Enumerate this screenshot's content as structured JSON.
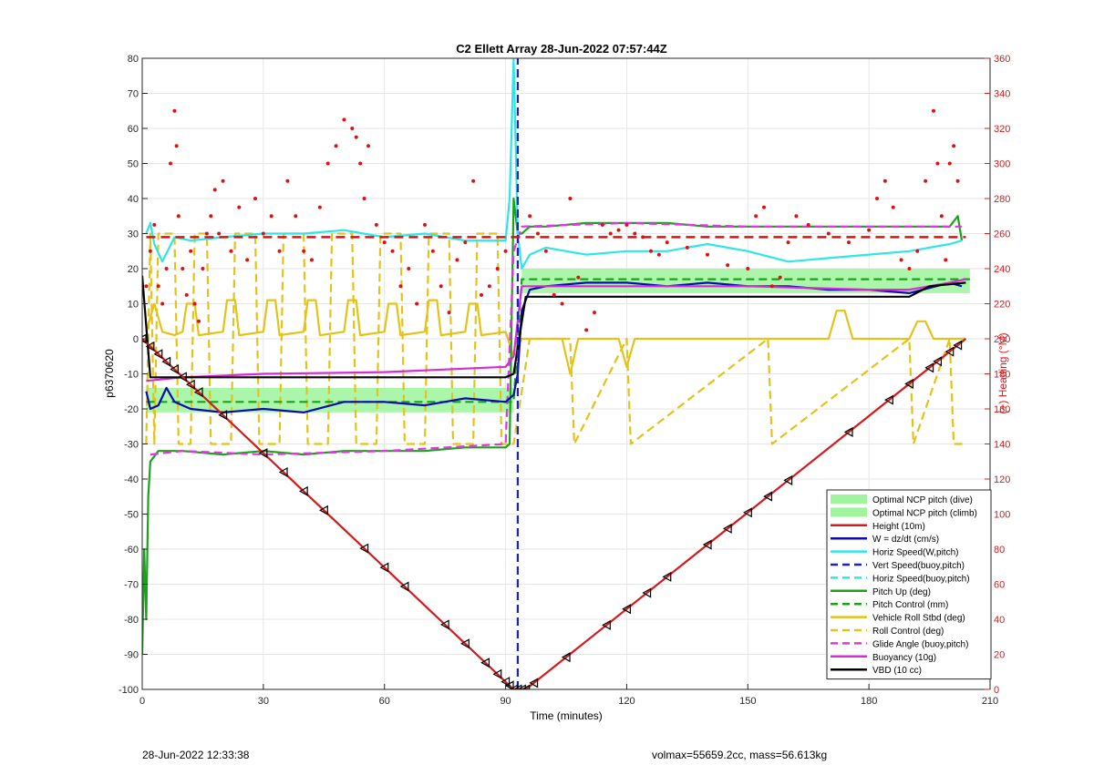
{
  "footer": {
    "left": "28-Jun-2022 12:33:38",
    "right": "volmax=55659.2cc, mass=56.613kg"
  },
  "chart_data": {
    "type": "line",
    "title": "C2 Ellett Array 28-Jun-2022 07:57:44Z",
    "xlabel": "Time (minutes)",
    "ylabel": "p6370620",
    "ylabel_right": "(+) Heading (°M)",
    "xlim": [
      0,
      210
    ],
    "ylim": [
      -100,
      80
    ],
    "ylim_right": [
      0,
      360
    ],
    "xticks": [
      0,
      30,
      60,
      90,
      120,
      150,
      180,
      210
    ],
    "yticks": [
      -100,
      -90,
      -80,
      -70,
      -60,
      -50,
      -40,
      -30,
      -20,
      -10,
      0,
      10,
      20,
      30,
      40,
      50,
      60,
      70,
      80
    ],
    "yticks_right": [
      0,
      20,
      40,
      60,
      80,
      100,
      120,
      140,
      160,
      180,
      200,
      220,
      240,
      260,
      280,
      300,
      320,
      340,
      360
    ],
    "grid": true,
    "legend_position": "bottom-right",
    "colors": {
      "height": "#d7191c",
      "w": "#0b0bb0",
      "horiz": "#2ee6e6",
      "vert_dash": "#1f1fcc",
      "pitch": "#1aa31a",
      "roll": "#e3c21a",
      "glide": "#e633e6",
      "buoyancy": "#d92ad9",
      "vbd": "#000000",
      "band": "#9ef59e",
      "heading": "#e01010"
    },
    "bands": [
      {
        "name": "Optimal NCP pitch (dive)",
        "x": [
          1,
          92
        ],
        "y": [
          -21,
          -14
        ]
      },
      {
        "name": "Optimal NCP pitch (climb)",
        "x": [
          94,
          205
        ],
        "y": [
          13,
          20
        ]
      }
    ],
    "series": [
      {
        "name": "Height (10m)",
        "style": "solid",
        "x": [
          0,
          92,
          95,
          204
        ],
        "y": [
          0,
          -100,
          -100,
          0
        ]
      },
      {
        "name": "W = dz/dt (cm/s)",
        "style": "solid",
        "x": [
          1,
          2,
          4,
          6,
          8,
          12,
          20,
          30,
          40,
          50,
          60,
          70,
          80,
          90,
          92,
          93,
          94,
          96,
          100,
          110,
          120,
          130,
          140,
          150,
          160,
          170,
          180,
          190,
          200,
          203
        ],
        "y": [
          -15,
          -20,
          -19,
          -14,
          -18,
          -20,
          -21,
          -20,
          -21,
          -18,
          -18,
          -19,
          -17,
          -18,
          -16,
          -10,
          8,
          14,
          15,
          16,
          16,
          15,
          16,
          15,
          15,
          14,
          14,
          13,
          16,
          15
        ]
      },
      {
        "name": "Horiz Speed(W,pitch)",
        "style": "solid",
        "x": [
          1,
          2,
          3,
          5,
          8,
          12,
          20,
          30,
          40,
          50,
          60,
          70,
          80,
          90,
          91,
          92,
          93,
          94,
          96,
          100,
          110,
          120,
          130,
          140,
          150,
          160,
          170,
          180,
          190,
          200,
          203
        ],
        "y": [
          30,
          33,
          27,
          22,
          29,
          28,
          29,
          30,
          30,
          31,
          29,
          30,
          28,
          28,
          40,
          80,
          30,
          20,
          24,
          26,
          24,
          25,
          25,
          27,
          25,
          22,
          23,
          24,
          25,
          27,
          28
        ]
      },
      {
        "name": "Vert Speed(buoy,pitch)",
        "style": "dashed",
        "x": [
          93,
          93
        ],
        "y": [
          -100,
          80
        ]
      },
      {
        "name": "Horiz Speed(buoy,pitch)",
        "style": "dashed",
        "x": [],
        "y": []
      },
      {
        "name": "Pitch Up (deg)",
        "style": "solid",
        "x": [
          0,
          0.5,
          1,
          1.5,
          2,
          4,
          10,
          20,
          30,
          40,
          50,
          60,
          70,
          80,
          90,
          91,
          92,
          93,
          94,
          96,
          100,
          110,
          120,
          130,
          140,
          150,
          160,
          170,
          180,
          190,
          200,
          202,
          203
        ],
        "y": [
          -90,
          -60,
          -80,
          -45,
          -35,
          -32,
          -32,
          -33,
          -32,
          -33,
          -32,
          -32,
          -32,
          -31,
          -31,
          -30,
          40,
          30,
          30,
          32,
          32,
          33,
          33,
          33,
          32,
          32,
          32,
          32,
          32,
          32,
          32,
          35,
          28
        ]
      },
      {
        "name": "Pitch Control (mm)",
        "style": "dashed",
        "x": [
          1,
          92,
          94,
          205
        ],
        "y": [
          -18,
          -18,
          17,
          17
        ]
      },
      {
        "name": "Vehicle Roll Stbd (deg)",
        "style": "solid",
        "x": [
          1,
          3,
          5,
          8,
          10,
          11,
          13,
          14,
          20,
          21,
          23,
          24,
          30,
          31,
          33,
          34,
          40,
          41,
          43,
          44,
          50,
          51,
          53,
          54,
          60,
          61,
          63,
          64,
          70,
          71,
          73,
          74,
          80,
          81,
          83,
          84,
          90,
          92,
          94,
          96,
          98,
          104,
          106,
          108,
          110,
          118,
          120,
          122,
          124,
          170,
          172,
          174,
          176,
          190,
          192,
          194,
          196,
          204
        ],
        "y": [
          2,
          10,
          2,
          1,
          2,
          10,
          10,
          1,
          2,
          11,
          11,
          1,
          2,
          11,
          11,
          1,
          2,
          11,
          11,
          1,
          2,
          11,
          11,
          1,
          2,
          10,
          10,
          1,
          2,
          11,
          11,
          1,
          2,
          10,
          10,
          1,
          2,
          -5,
          0,
          0,
          0,
          0,
          -10,
          0,
          0,
          0,
          -8,
          0,
          0,
          0,
          8,
          8,
          0,
          0,
          5,
          5,
          0,
          0
        ]
      },
      {
        "name": "Roll Control (deg)",
        "style": "dashed",
        "x": [
          1,
          2,
          3,
          4,
          8,
          9,
          12,
          13,
          16,
          17,
          22,
          23,
          28,
          29,
          34,
          35,
          40,
          41,
          46,
          47,
          52,
          53,
          58,
          59,
          64,
          65,
          70,
          71,
          76,
          77,
          82,
          83,
          88,
          89,
          92,
          96,
          97,
          106,
          107,
          120,
          121,
          155,
          156,
          190,
          191,
          200,
          201,
          204
        ],
        "y": [
          -30,
          30,
          -30,
          30,
          30,
          -30,
          -30,
          30,
          30,
          -30,
          -30,
          30,
          30,
          -30,
          -30,
          30,
          30,
          -30,
          -30,
          30,
          30,
          -30,
          -30,
          30,
          30,
          -30,
          -30,
          30,
          30,
          -30,
          -30,
          30,
          30,
          -30,
          -30,
          0,
          0,
          0,
          -30,
          0,
          -30,
          0,
          -30,
          0,
          -30,
          0,
          -30,
          -30
        ]
      },
      {
        "name": "Glide Angle (buoy,pitch)",
        "style": "dashed",
        "x": [
          2,
          10,
          30,
          60,
          90,
          92,
          94,
          120,
          150,
          180,
          203
        ],
        "y": [
          -33,
          -32,
          -33,
          -32,
          -30,
          25,
          32,
          33,
          32,
          32,
          32
        ]
      },
      {
        "name": "Buoyancy (10g)",
        "style": "solid",
        "x": [
          1,
          10,
          30,
          60,
          90,
          92,
          94,
          120,
          150,
          180,
          190,
          200,
          204
        ],
        "y": [
          -12,
          -11,
          -10,
          -9.5,
          -8,
          -5,
          15,
          15,
          15,
          14,
          14,
          16,
          17
        ]
      },
      {
        "name": "VBD (10 cc)",
        "style": "solid",
        "x": [
          0,
          2,
          90,
          92,
          95,
          100,
          190,
          195,
          204
        ],
        "y": [
          18,
          -11,
          -11,
          -10,
          12,
          12,
          12,
          15,
          16
        ]
      }
    ],
    "heading_points_deg": {
      "x": [
        1,
        2,
        3,
        4,
        5,
        6,
        7,
        8,
        8.5,
        9,
        10,
        11,
        12,
        13,
        14,
        15,
        16,
        17,
        18,
        19,
        20,
        22,
        24,
        26,
        28,
        30,
        32,
        34,
        36,
        38,
        40,
        42,
        44,
        46,
        48,
        50,
        52,
        53,
        54,
        55,
        56,
        58,
        60,
        62,
        64,
        66,
        68,
        70,
        72,
        74,
        76,
        78,
        80,
        82,
        84,
        86,
        88,
        90,
        96,
        98,
        100,
        102,
        104,
        106,
        108,
        110,
        112,
        114,
        116,
        118,
        120,
        122,
        124,
        126,
        128,
        130,
        135,
        140,
        145,
        150,
        152,
        154,
        156,
        158,
        160,
        162,
        165,
        170,
        175,
        180,
        182,
        184,
        186,
        188,
        190,
        192,
        194,
        196,
        197,
        198,
        199,
        200,
        201,
        202
      ],
      "y": [
        230,
        250,
        265,
        230,
        220,
        240,
        300,
        330,
        310,
        270,
        240,
        225,
        250,
        220,
        210,
        240,
        260,
        270,
        285,
        260,
        290,
        250,
        275,
        245,
        280,
        260,
        270,
        250,
        290,
        270,
        250,
        245,
        275,
        300,
        310,
        325,
        320,
        315,
        300,
        280,
        310,
        265,
        255,
        250,
        230,
        240,
        220,
        265,
        250,
        230,
        215,
        245,
        255,
        290,
        225,
        230,
        240,
        250,
        270,
        260,
        250,
        225,
        220,
        280,
        235,
        205,
        215,
        265,
        260,
        262,
        265,
        260,
        258,
        250,
        248,
        255,
        252,
        248,
        242,
        240,
        270,
        275,
        230,
        235,
        255,
        270,
        265,
        260,
        255,
        262,
        280,
        290,
        275,
        245,
        240,
        250,
        290,
        330,
        300,
        270,
        245,
        300,
        310,
        290
      ]
    },
    "heading_mean_deg": 258,
    "legend": [
      {
        "label": "Optimal NCP pitch (dive)",
        "kind": "band",
        "color": "#9ef59e"
      },
      {
        "label": "Optimal NCP pitch (climb)",
        "kind": "band",
        "color": "#9ef59e"
      },
      {
        "label": "Height (10m)",
        "kind": "solid",
        "color": "#d7191c"
      },
      {
        "label": "W = dz/dt (cm/s)",
        "kind": "solid",
        "color": "#0b0bb0"
      },
      {
        "label": "Horiz Speed(W,pitch)",
        "kind": "solid",
        "color": "#2ee6e6"
      },
      {
        "label": "Vert Speed(buoy,pitch)",
        "kind": "dashed",
        "color": "#1f1fcc"
      },
      {
        "label": "Horiz Speed(buoy,pitch)",
        "kind": "dashed",
        "color": "#2ee6e6"
      },
      {
        "label": "Pitch Up (deg)",
        "kind": "solid",
        "color": "#1aa31a"
      },
      {
        "label": "Pitch Control (mm)",
        "kind": "dashed",
        "color": "#1aa31a"
      },
      {
        "label": "Vehicle Roll Stbd (deg)",
        "kind": "solid",
        "color": "#e3c21a"
      },
      {
        "label": "Roll Control (deg)",
        "kind": "dashed",
        "color": "#e3c21a"
      },
      {
        "label": "Glide Angle (buoy,pitch)",
        "kind": "dashed",
        "color": "#e633e6"
      },
      {
        "label": "Buoyancy (10g)",
        "kind": "solid",
        "color": "#d92ad9"
      },
      {
        "label": "VBD (10 cc)",
        "kind": "solid",
        "color": "#000000"
      }
    ],
    "markers_height_x": [
      0,
      2,
      4,
      6,
      8,
      10,
      12,
      14,
      20,
      30,
      35,
      40,
      45,
      55,
      60,
      65,
      75,
      80,
      85,
      88,
      90,
      91,
      92,
      93,
      94,
      95,
      97,
      105,
      115,
      120,
      125,
      130,
      140,
      145,
      150,
      155,
      160,
      175,
      185,
      190,
      195,
      197,
      200,
      202
    ]
  }
}
